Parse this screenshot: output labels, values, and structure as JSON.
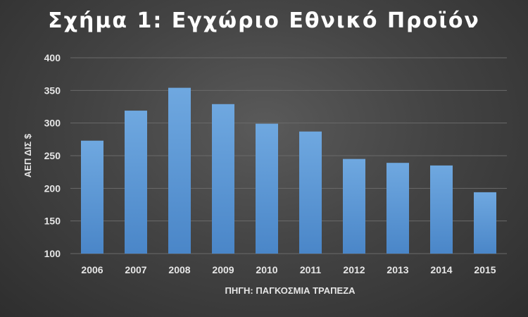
{
  "chart_data": {
    "type": "bar",
    "title": "Σχήμα 1: Εγχώριο Εθνικό Προϊόν",
    "xlabel": "ΠΗΓΗ: ΠΑΓΚΟΣΜΙΑ ΤΡΑΠΕΖΑ",
    "ylabel": "ΑΕΠ ΔΙΣ $",
    "categories": [
      "2006",
      "2007",
      "2008",
      "2009",
      "2010",
      "2011",
      "2012",
      "2013",
      "2014",
      "2015"
    ],
    "values": [
      273,
      319,
      354,
      329,
      299,
      287,
      245,
      239,
      235,
      194
    ],
    "ylim": [
      100,
      400
    ],
    "yticks": [
      "100",
      "150",
      "200",
      "250",
      "300",
      "350",
      "400"
    ],
    "grid": true,
    "bar_color_top": "#6fa8e0",
    "bar_color_bottom": "#4a86c8",
    "grid_color": "#6a6a6a"
  }
}
